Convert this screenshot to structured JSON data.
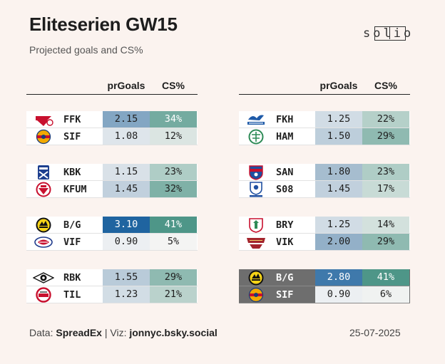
{
  "title": "Eliteserien GW15",
  "subtitle": "Projected goals and CS%",
  "brand": "solio",
  "colors": {
    "background": "#fbf3ef",
    "featured_row": "#6e6e6e"
  },
  "chart_data": {
    "type": "table",
    "title": "Eliteserien GW15",
    "subtitle": "Projected goals and CS%",
    "columns": [
      "prGoals",
      "CS%"
    ],
    "matches": [
      {
        "home": {
          "team": "FFK",
          "crest": "fredrikstad-crest",
          "prGoals": "2.15",
          "cs": "34%"
        },
        "away": {
          "team": "SIF",
          "crest": "stromsgodset-crest",
          "prGoals": "1.08",
          "cs": "12%"
        }
      },
      {
        "home": {
          "team": "KBK",
          "crest": "kristiansund-crest",
          "prGoals": "1.15",
          "cs": "23%"
        },
        "away": {
          "team": "KFUM",
          "crest": "kfum-crest",
          "prGoals": "1.45",
          "cs": "32%"
        }
      },
      {
        "home": {
          "team": "B/G",
          "crest": "bodo-glimt-crest",
          "prGoals": "3.10",
          "cs": "41%"
        },
        "away": {
          "team": "VIF",
          "crest": "valerenga-crest",
          "prGoals": "0.90",
          "cs": "5%"
        }
      },
      {
        "home": {
          "team": "RBK",
          "crest": "rosenborg-crest",
          "prGoals": "1.55",
          "cs": "29%"
        },
        "away": {
          "team": "TIL",
          "crest": "tromso-crest",
          "prGoals": "1.23",
          "cs": "21%"
        }
      },
      {
        "home": {
          "team": "FKH",
          "crest": "haugesund-crest",
          "prGoals": "1.25",
          "cs": "22%"
        },
        "away": {
          "team": "HAM",
          "crest": "hamkam-crest",
          "prGoals": "1.50",
          "cs": "29%"
        }
      },
      {
        "home": {
          "team": "SAN",
          "crest": "sandefjord-crest",
          "prGoals": "1.80",
          "cs": "23%"
        },
        "away": {
          "team": "S08",
          "crest": "sarpsborg-crest",
          "prGoals": "1.45",
          "cs": "17%"
        }
      },
      {
        "home": {
          "team": "BRY",
          "crest": "bryne-crest",
          "prGoals": "1.25",
          "cs": "14%"
        },
        "away": {
          "team": "VIK",
          "crest": "viking-crest",
          "prGoals": "2.00",
          "cs": "29%"
        }
      },
      {
        "featured": true,
        "home": {
          "team": "B/G",
          "crest": "bodo-glimt-crest",
          "prGoals": "2.80",
          "cs": "41%"
        },
        "away": {
          "team": "SIF",
          "crest": "stromsgodset-crest",
          "prGoals": "0.90",
          "cs": "6%"
        }
      }
    ],
    "goals_scale": [
      0.9,
      3.1
    ],
    "cs_scale": [
      5,
      41
    ]
  },
  "footer": {
    "data_label": "Data:",
    "data_source": "SpreadEx",
    "divider": "|",
    "viz_label": "Viz:",
    "viz_author": "jonnyc.bsky.social",
    "date": "25-07-2025"
  }
}
